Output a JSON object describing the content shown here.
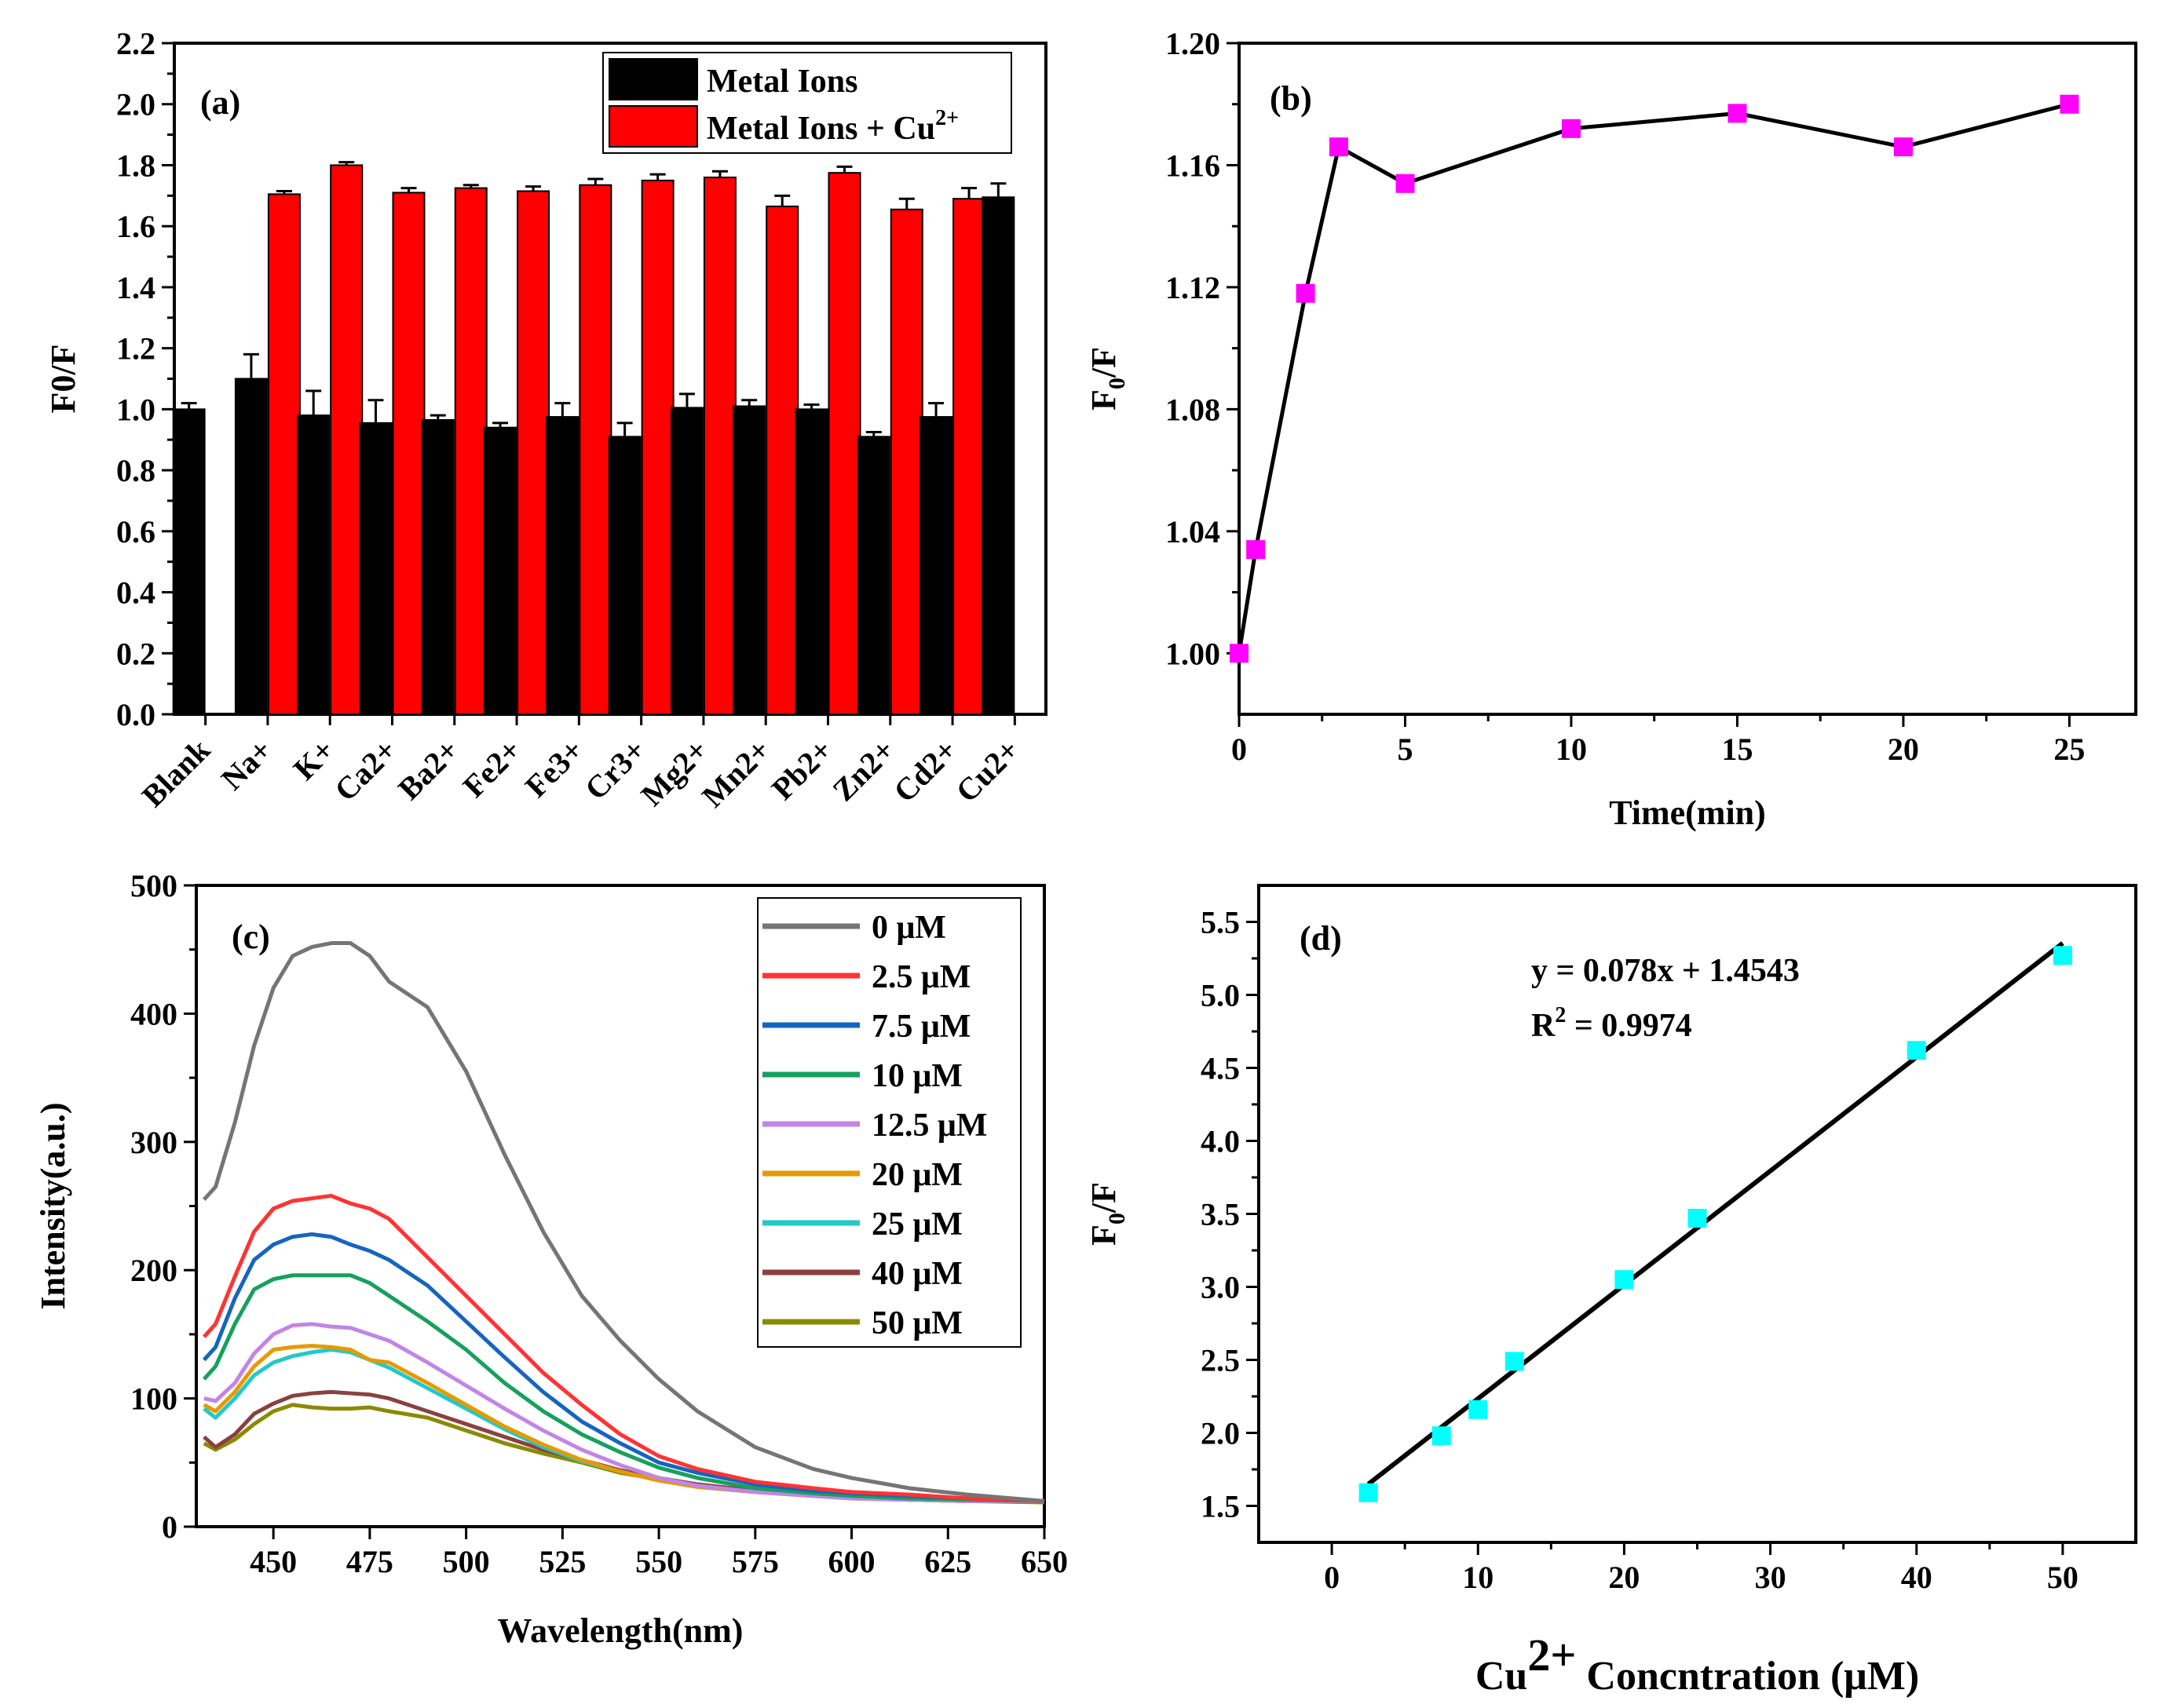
{
  "chart_data": [
    {
      "panel_label": "(a)",
      "type": "bar",
      "ylabel": "F0/F",
      "xlabel": "",
      "ylim": [
        0,
        2.2
      ],
      "yticks": [
        "0.0",
        "0.2",
        "0.4",
        "0.6",
        "0.8",
        "1.0",
        "1.2",
        "1.4",
        "1.6",
        "1.8",
        "2.0",
        "2.2"
      ],
      "categories": [
        "Blank",
        "Na+",
        "K+",
        "Ca2+",
        "Ba2+",
        "Fe2+",
        "Fe3+",
        "Cr3+",
        "Mg2+",
        "Mn2+",
        "Pb2+",
        "Zn2+",
        "Cd2+",
        "Cu2+"
      ],
      "legend": {
        "position": "top-right"
      },
      "series": [
        {
          "name": "Metal Ions",
          "name_sup": "",
          "color": "#000000",
          "values": [
            1.0,
            1.1,
            0.98,
            0.955,
            0.965,
            0.94,
            0.975,
            0.91,
            1.005,
            1.01,
            1.0,
            0.91,
            0.975,
            1.695
          ],
          "errors": [
            0.02,
            0.08,
            0.08,
            0.075,
            0.015,
            0.015,
            0.045,
            0.045,
            0.045,
            0.02,
            0.015,
            0.015,
            0.045,
            0.045
          ]
        },
        {
          "name": "Metal Ions + Cu",
          "name_sup": "2+",
          "color": "#ff0000",
          "values": [
            null,
            1.705,
            1.8,
            1.71,
            1.725,
            1.715,
            1.735,
            1.75,
            1.76,
            1.665,
            1.775,
            1.655,
            1.69,
            null
          ],
          "errors": [
            null,
            0.01,
            0.01,
            0.015,
            0.01,
            0.015,
            0.02,
            0.02,
            0.02,
            0.035,
            0.02,
            0.035,
            0.035,
            null
          ]
        }
      ]
    },
    {
      "panel_label": "(b)",
      "type": "line",
      "xlabel": "Time(min)",
      "ylabel_main": "F",
      "ylabel_sub": "0",
      "ylabel_tail": "/F",
      "xlim": [
        0,
        27
      ],
      "ylim": [
        0.98,
        1.2
      ],
      "xticks": [
        "0",
        "5",
        "10",
        "15",
        "20",
        "25"
      ],
      "yticks": [
        "1.00",
        "1.04",
        "1.08",
        "1.12",
        "1.16",
        "1.20"
      ],
      "marker_color": "#ff00ff",
      "x": [
        0,
        0.5,
        2,
        3,
        5,
        10,
        15,
        20,
        25
      ],
      "y": [
        1.0,
        1.034,
        1.118,
        1.166,
        1.154,
        1.172,
        1.177,
        1.166,
        1.18
      ]
    },
    {
      "panel_label": "(c)",
      "type": "line",
      "xlabel": "Wavelength(nm)",
      "ylabel": "Intensity(a.u.)",
      "xlim": [
        430,
        650
      ],
      "ylim": [
        0,
        500
      ],
      "xticks": [
        "450",
        "475",
        "500",
        "525",
        "550",
        "575",
        "600",
        "625",
        "650"
      ],
      "yticks": [
        "0",
        "100",
        "200",
        "300",
        "400",
        "500"
      ],
      "legend": {
        "position": "top-right"
      },
      "x": [
        432,
        435,
        440,
        445,
        450,
        455,
        460,
        465,
        470,
        475,
        480,
        490,
        500,
        510,
        520,
        530,
        540,
        550,
        560,
        575,
        590,
        600,
        615,
        630,
        650
      ],
      "series": [
        {
          "name": "0 μM",
          "color": "#757575",
          "values": [
            255,
            265,
            315,
            375,
            420,
            445,
            452,
            455,
            455,
            445,
            425,
            405,
            355,
            290,
            230,
            180,
            145,
            115,
            90,
            62,
            45,
            38,
            30,
            25,
            20
          ]
        },
        {
          "name": "2.5 μM",
          "color": "#ff3333",
          "values": [
            148,
            158,
            195,
            230,
            248,
            254,
            256,
            258,
            252,
            248,
            240,
            210,
            180,
            150,
            120,
            95,
            72,
            55,
            45,
            35,
            30,
            27,
            25,
            22,
            20
          ]
        },
        {
          "name": "7.5 μM",
          "color": "#1565c0",
          "values": [
            130,
            140,
            178,
            208,
            220,
            226,
            228,
            226,
            220,
            215,
            208,
            188,
            160,
            132,
            105,
            82,
            65,
            50,
            42,
            33,
            28,
            26,
            24,
            22,
            20
          ]
        },
        {
          "name": "10 μM",
          "color": "#17a05d",
          "values": [
            115,
            125,
            158,
            185,
            193,
            196,
            196,
            196,
            196,
            190,
            180,
            160,
            138,
            112,
            90,
            72,
            58,
            46,
            38,
            30,
            26,
            24,
            22,
            21,
            20
          ]
        },
        {
          "name": "12.5 μM",
          "color": "#c285e6",
          "values": [
            100,
            98,
            112,
            135,
            150,
            157,
            158,
            156,
            155,
            150,
            145,
            128,
            110,
            92,
            75,
            60,
            48,
            38,
            32,
            27,
            24,
            22,
            21,
            20,
            20
          ]
        },
        {
          "name": "20 μM",
          "color": "#e69a00",
          "values": [
            95,
            90,
            105,
            125,
            138,
            140,
            141,
            140,
            138,
            130,
            128,
            112,
            95,
            78,
            64,
            52,
            43,
            36,
            31,
            27,
            24,
            22,
            21,
            20,
            20
          ]
        },
        {
          "name": "25 μM",
          "color": "#22c9c9",
          "values": [
            92,
            85,
            100,
            118,
            128,
            133,
            136,
            138,
            136,
            130,
            124,
            108,
            92,
            76,
            62,
            51,
            43,
            36,
            31,
            27,
            24,
            22,
            21,
            20,
            20
          ]
        },
        {
          "name": "40 μM",
          "color": "#8b4040",
          "values": [
            70,
            62,
            72,
            88,
            96,
            102,
            104,
            105,
            104,
            103,
            100,
            90,
            80,
            70,
            60,
            52,
            44,
            38,
            33,
            28,
            25,
            23,
            21,
            20,
            20
          ]
        },
        {
          "name": "50 μM",
          "color": "#8a8a00",
          "values": [
            65,
            60,
            68,
            80,
            90,
            95,
            93,
            92,
            92,
            93,
            90,
            85,
            75,
            65,
            57,
            50,
            42,
            37,
            33,
            28,
            25,
            23,
            21,
            20,
            19
          ]
        }
      ]
    },
    {
      "panel_label": "(d)",
      "type": "scatter",
      "xlabel_pre": "Cu",
      "xlabel_sup": "2+",
      "xlabel_post": " Concntration (μM)",
      "ylabel_main": "F",
      "ylabel_sub": "0",
      "ylabel_tail": "/F",
      "xlim": [
        -5,
        55
      ],
      "ylim": [
        1.25,
        5.75
      ],
      "xticks": [
        "0",
        "10",
        "20",
        "30",
        "40",
        "50"
      ],
      "yticks": [
        "1.5",
        "2.0",
        "2.5",
        "3.0",
        "3.5",
        "4.0",
        "4.5",
        "5.0",
        "5.5"
      ],
      "marker_color": "#00ffff",
      "x": [
        2.5,
        7.5,
        10,
        12.5,
        20,
        25,
        40,
        50
      ],
      "y": [
        1.59,
        1.98,
        2.16,
        2.49,
        3.05,
        3.47,
        4.62,
        5.27
      ],
      "fit": {
        "slope": 0.078,
        "intercept": 1.4543,
        "x_range": [
          2.5,
          50
        ],
        "color": "#000000"
      },
      "equation": "y = 0.078x + 1.4543",
      "r2_pre": "R",
      "r2_sup": "2",
      "r2_post": " = 0.9974"
    }
  ]
}
